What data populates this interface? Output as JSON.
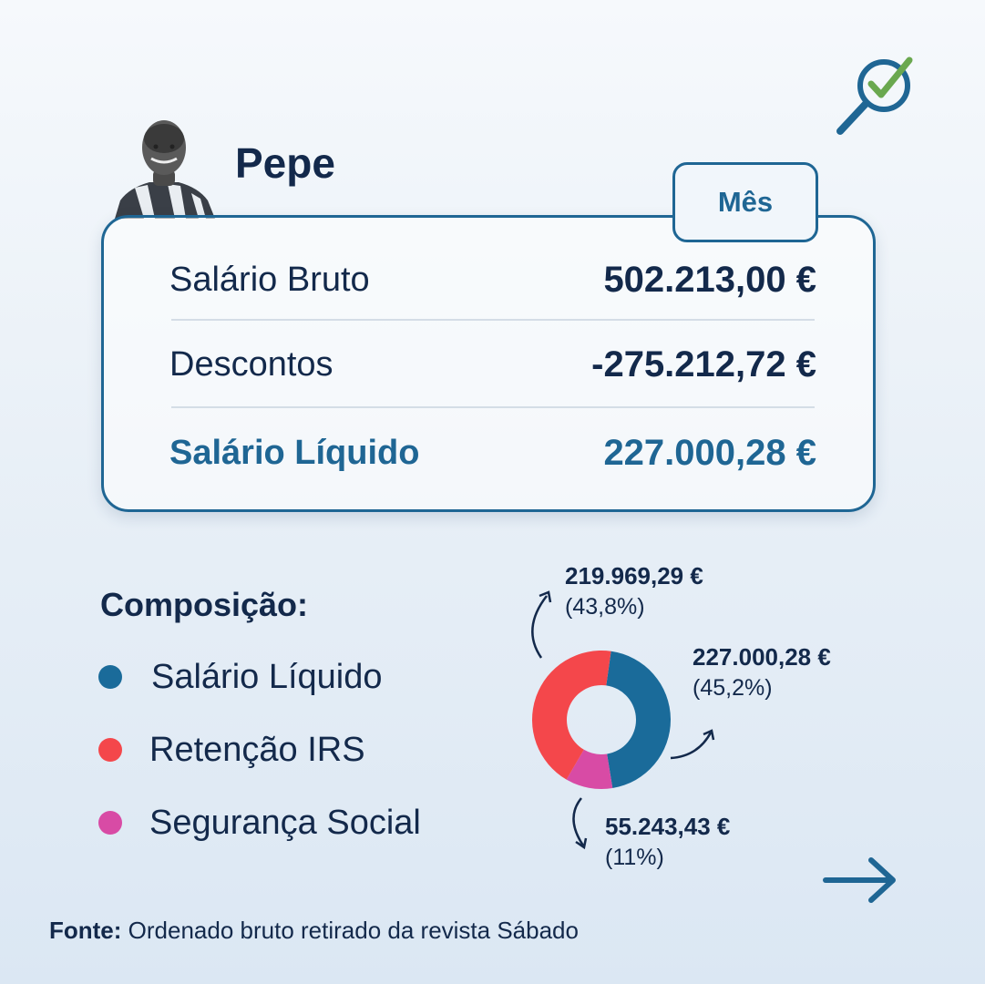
{
  "header": {
    "player_name": "Pepe"
  },
  "salary_card": {
    "period_tab": "Mês",
    "rows": [
      {
        "label": "Salário Bruto",
        "value": "502.213,00 €"
      },
      {
        "label": "Descontos",
        "value": "-275.212,72 €"
      },
      {
        "label": "Salário Líquido",
        "value": "227.000,28 €"
      }
    ]
  },
  "composition": {
    "title": "Composição:",
    "legend": [
      {
        "label": "Salário Líquido",
        "color": "#1a6b9a"
      },
      {
        "label": "Retenção IRS",
        "color": "#f4474b"
      },
      {
        "label": "Segurança Social",
        "color": "#d84ba5"
      }
    ],
    "callouts": {
      "irs": {
        "amount": "219.969,29 €",
        "pct": "(43,8%)"
      },
      "net": {
        "amount": "227.000,28 €",
        "pct": "(45,2%)"
      },
      "social": {
        "amount": "55.243,43 €",
        "pct": "(11%)"
      }
    }
  },
  "chart_data": {
    "type": "pie",
    "categories": [
      "Salário Líquido",
      "Retenção IRS",
      "Segurança Social"
    ],
    "values": [
      227000.28,
      219969.29,
      55243.43
    ],
    "percentages": [
      45.2,
      43.8,
      11
    ],
    "colors": [
      "#1a6b9a",
      "#f4474b",
      "#d84ba5"
    ],
    "title": "Composição:",
    "legend_position": "left",
    "donut": true
  },
  "footer": {
    "source_label": "Fonte:",
    "source_text": "Ordenado bruto retirado da revista Sábado"
  },
  "colors": {
    "primary": "#1f6694",
    "text": "#13294b",
    "check": "#6aa84f"
  },
  "icons": {
    "logo": "magnifier-check-icon",
    "next": "arrow-right-icon"
  }
}
